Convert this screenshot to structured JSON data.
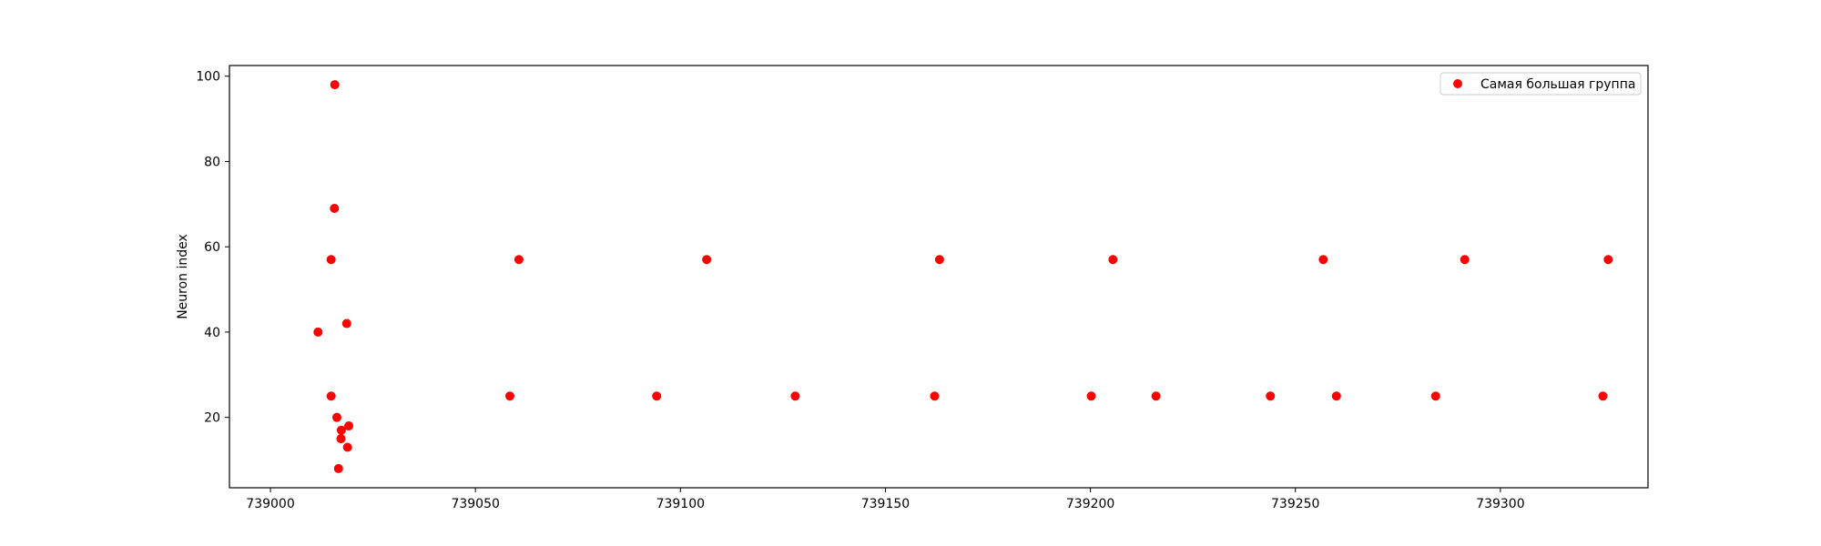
{
  "chart_data": {
    "type": "scatter",
    "title": "",
    "xlabel": "",
    "ylabel": "Neuron index",
    "xlim": [
      738990,
      739336
    ],
    "ylim": [
      3.5,
      102.5
    ],
    "xticks": [
      739000,
      739050,
      739100,
      739150,
      739200,
      739250,
      739300
    ],
    "yticks": [
      20,
      40,
      60,
      80,
      100
    ],
    "grid": false,
    "legend_position": "top-right",
    "series": [
      {
        "name": "Самая большая группа",
        "color": "#ff0000",
        "points": [
          {
            "x": 739015.7,
            "y": 98
          },
          {
            "x": 739015.6,
            "y": 69
          },
          {
            "x": 739014.8,
            "y": 57
          },
          {
            "x": 739018.6,
            "y": 42
          },
          {
            "x": 739011.6,
            "y": 40
          },
          {
            "x": 739014.8,
            "y": 25
          },
          {
            "x": 739016.2,
            "y": 20
          },
          {
            "x": 739019.1,
            "y": 18
          },
          {
            "x": 739017.3,
            "y": 17
          },
          {
            "x": 739017.2,
            "y": 15
          },
          {
            "x": 739018.8,
            "y": 13
          },
          {
            "x": 739016.6,
            "y": 8
          },
          {
            "x": 739060.6,
            "y": 57
          },
          {
            "x": 739058.4,
            "y": 25
          },
          {
            "x": 739094.2,
            "y": 25
          },
          {
            "x": 739106.4,
            "y": 57
          },
          {
            "x": 739128.0,
            "y": 25
          },
          {
            "x": 739162.0,
            "y": 25
          },
          {
            "x": 739163.2,
            "y": 57
          },
          {
            "x": 739200.2,
            "y": 25
          },
          {
            "x": 739205.5,
            "y": 57
          },
          {
            "x": 739216.0,
            "y": 25
          },
          {
            "x": 739243.9,
            "y": 25
          },
          {
            "x": 739256.8,
            "y": 57
          },
          {
            "x": 739260.0,
            "y": 25
          },
          {
            "x": 739284.2,
            "y": 25
          },
          {
            "x": 739291.3,
            "y": 57
          },
          {
            "x": 739325.0,
            "y": 25
          },
          {
            "x": 739326.3,
            "y": 57
          }
        ]
      }
    ]
  }
}
